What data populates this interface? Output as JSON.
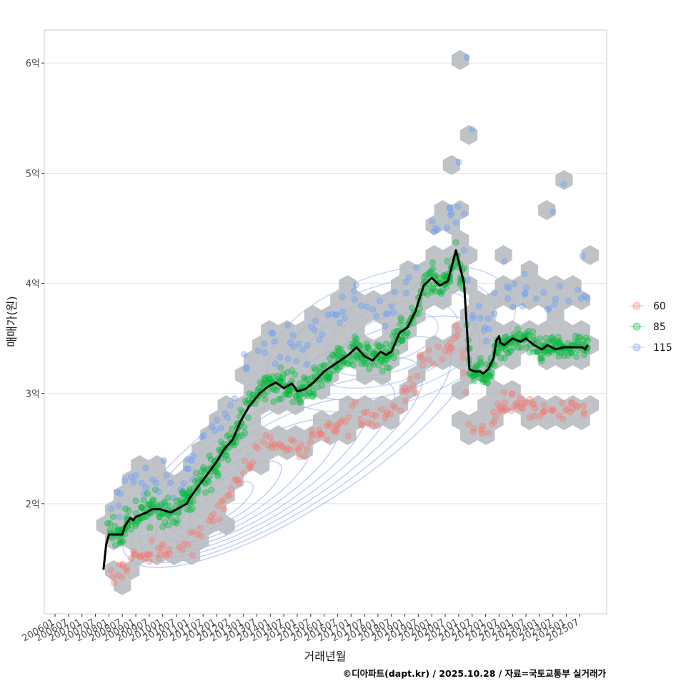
{
  "chart_data": {
    "type": "scatter",
    "title": "",
    "xlabel": "거래년월",
    "ylabel": "매매가(원)",
    "caption": "©디아파트(dapt.kr) / 2025.10.28 / 자료=국토교통부 실거래가",
    "x_ticks": [
      "200601",
      "200607",
      "200701",
      "200707",
      "200801",
      "200807",
      "200901",
      "200907",
      "201001",
      "201007",
      "201101",
      "201107",
      "201201",
      "201207",
      "201301",
      "201307",
      "201401",
      "201407",
      "201501",
      "201507",
      "201601",
      "201607",
      "201701",
      "201707",
      "201801",
      "201807",
      "201901",
      "201907",
      "202001",
      "202007",
      "202101",
      "202107",
      "202201",
      "202207",
      "202301",
      "202307",
      "202401",
      "202407",
      "202501",
      "202507"
    ],
    "y_ticks": [
      {
        "value": 2,
        "label": "2억"
      },
      {
        "value": 3,
        "label": "3억"
      },
      {
        "value": 4,
        "label": "4억"
      },
      {
        "value": 5,
        "label": "5억"
      },
      {
        "value": 6,
        "label": "6억"
      }
    ],
    "xlim": [
      2005.6,
      2026.5
    ],
    "ylim": [
      1.0,
      6.3
    ],
    "legend": {
      "placement": "right",
      "entries": [
        {
          "label": "60",
          "color": "#F8766D"
        },
        {
          "label": "85",
          "color": "#00BA38"
        },
        {
          "label": "115",
          "color": "#619CFF"
        }
      ]
    },
    "colors": {
      "hex": "#b4b9bd",
      "line": "#000000",
      "contour": "#8aa6ee",
      "grid": "#e5e5e5",
      "border": "#cccccc"
    },
    "series_median_line": {
      "name": "median price",
      "x": [
        2007.8,
        2007.9,
        2008.0,
        2008.5,
        2008.6,
        2008.8,
        2008.9,
        2009.0,
        2009.4,
        2009.6,
        2009.9,
        2010.3,
        2010.6,
        2010.9,
        2011.0,
        2011.3,
        2011.7,
        2012.0,
        2012.3,
        2012.6,
        2012.9,
        2013.2,
        2013.6,
        2013.9,
        2014.2,
        2014.5,
        2014.8,
        2014.9,
        2015.0,
        2015.3,
        2015.6,
        2016.0,
        2016.3,
        2016.6,
        2016.9,
        2017.2,
        2017.5,
        2017.8,
        2018.1,
        2018.3,
        2018.5,
        2018.8,
        2019.1,
        2019.4,
        2019.7,
        2020.0,
        2020.3,
        2020.6,
        2020.9,
        2021.2,
        2021.4,
        2021.6,
        2021.8,
        2021.9,
        2022.1,
        2022.3,
        2022.4,
        2022.5,
        2022.55,
        2022.7,
        2023.0,
        2023.3,
        2023.5,
        2023.8,
        2024.1,
        2024.3,
        2024.6,
        2024.9,
        2025.1,
        2025.3,
        2025.5,
        2025.6,
        2025.7,
        2025.8
      ],
      "y": [
        1.4,
        1.63,
        1.72,
        1.72,
        1.8,
        1.87,
        1.85,
        1.88,
        1.92,
        1.95,
        1.95,
        1.92,
        1.96,
        2.0,
        2.05,
        2.15,
        2.28,
        2.38,
        2.5,
        2.58,
        2.75,
        2.88,
        3.0,
        3.06,
        3.1,
        3.05,
        3.09,
        3.06,
        3.02,
        3.04,
        3.1,
        3.2,
        3.25,
        3.3,
        3.35,
        3.42,
        3.34,
        3.3,
        3.38,
        3.35,
        3.38,
        3.55,
        3.6,
        3.75,
        3.98,
        4.05,
        3.98,
        4.02,
        4.3,
        4.0,
        3.22,
        3.2,
        3.2,
        3.18,
        3.22,
        3.32,
        3.48,
        3.52,
        3.46,
        3.44,
        3.5,
        3.47,
        3.5,
        3.44,
        3.4,
        3.44,
        3.4,
        3.42,
        3.42,
        3.42,
        3.42,
        3.42,
        3.4,
        3.44
      ]
    }
  }
}
